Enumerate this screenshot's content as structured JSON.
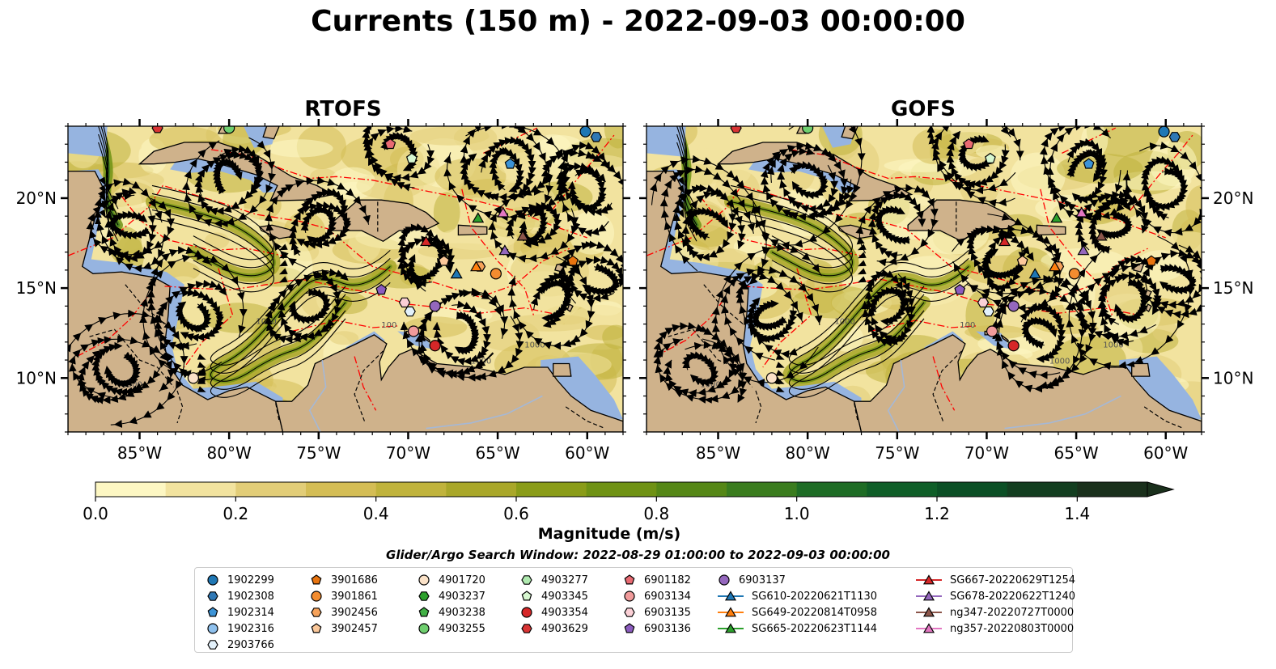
{
  "title": "Currents (150 m) - 2022-09-03 00:00:00",
  "panels": [
    {
      "title": "RTOFS"
    },
    {
      "title": "GOFS"
    }
  ],
  "map": {
    "lon_range": [
      -89,
      -58
    ],
    "lat_range": [
      7,
      24
    ],
    "lon_ticks": [
      -85,
      -80,
      -75,
      -70,
      -65,
      -60
    ],
    "lat_ticks": [
      10,
      15,
      20
    ],
    "lon_tick_labels": [
      "85°W",
      "80°W",
      "75°W",
      "70°W",
      "65°W",
      "60°W"
    ],
    "lat_tick_labels": [
      "10°N",
      "15°N",
      "20°N"
    ],
    "land_color": "#cfb28b",
    "water_color": "#96b4e0",
    "eez_color": "#ff0000",
    "contour_labels": [
      "100",
      "1000"
    ]
  },
  "colorbar": {
    "label": "Magnitude (m/s)",
    "min": 0.0,
    "max": 1.5,
    "step": 0.1,
    "tick_values": [
      0.0,
      0.2,
      0.4,
      0.6,
      0.8,
      1.0,
      1.2,
      1.4
    ],
    "tick_labels": [
      "0.0",
      "0.2",
      "0.4",
      "0.6",
      "0.8",
      "1.0",
      "1.2",
      "1.4"
    ],
    "colors": [
      "#fdf7c3",
      "#f2e39f",
      "#e2cd78",
      "#d4bd55",
      "#c0b33c",
      "#a9a729",
      "#8a9c18",
      "#6f9214",
      "#558716",
      "#3a7c1e",
      "#1e6c25",
      "#0f5e28",
      "#0b4f25",
      "#133e20",
      "#1a301c"
    ],
    "extend": "max"
  },
  "search_window": "Glider/Argo Search Window: 2022-08-29 01:00:00 to 2022-09-03 00:00:00",
  "legend": [
    {
      "label": "1902299",
      "marker": "circle",
      "color": "#1f77b4"
    },
    {
      "label": "1902308",
      "marker": "hexagon",
      "color": "#2f78b5"
    },
    {
      "label": "1902314",
      "marker": "pentagon",
      "color": "#3c93d6"
    },
    {
      "label": "1902316",
      "marker": "circle",
      "color": "#8fc1ee"
    },
    {
      "label": "2903766",
      "marker": "hexagon",
      "color": "#e3f1fb"
    },
    {
      "label": "3901686",
      "marker": "pentagon",
      "color": "#e8740f"
    },
    {
      "label": "3901861",
      "marker": "circle",
      "color": "#f38c2f"
    },
    {
      "label": "3902456",
      "marker": "hexagon",
      "color": "#f6a25a"
    },
    {
      "label": "3902457",
      "marker": "pentagon",
      "color": "#fbc89a"
    },
    {
      "label": "4901720",
      "marker": "circle",
      "color": "#fbe2c8"
    },
    {
      "label": "4903237",
      "marker": "hexagon",
      "color": "#2ca02c"
    },
    {
      "label": "4903238",
      "marker": "pentagon",
      "color": "#41b045"
    },
    {
      "label": "4903255",
      "marker": "circle",
      "color": "#6fcf6f"
    },
    {
      "label": "4903277",
      "marker": "hexagon",
      "color": "#b0eab0"
    },
    {
      "label": "4903345",
      "marker": "pentagon",
      "color": "#d7f7d0"
    },
    {
      "label": "4903354",
      "marker": "circle",
      "color": "#d62728"
    },
    {
      "label": "4903629",
      "marker": "hexagon",
      "color": "#d93434"
    },
    {
      "label": "6901182",
      "marker": "pentagon",
      "color": "#e86a72"
    },
    {
      "label": "6903134",
      "marker": "circle",
      "color": "#f19b9b"
    },
    {
      "label": "6903135",
      "marker": "hexagon",
      "color": "#fbd0d6"
    },
    {
      "label": "6903136",
      "marker": "pentagon",
      "color": "#8c5cbf"
    },
    {
      "label": "6903137",
      "marker": "circle",
      "color": "#9467bd"
    },
    {
      "label": "SG610-20220621T1130",
      "marker": "triangle",
      "color": "#1f77b4"
    },
    {
      "label": "SG649-20220814T0958",
      "marker": "triangle",
      "color": "#ff7f0e"
    },
    {
      "label": "SG665-20220623T1144",
      "marker": "triangle",
      "color": "#2ca02c"
    },
    {
      "label": "SG667-20220629T1254",
      "marker": "triangle",
      "color": "#d62728"
    },
    {
      "label": "SG678-20220622T1240",
      "marker": "triangle",
      "color": "#9467bd"
    },
    {
      "label": "ng347-20220727T0000",
      "marker": "triangle",
      "color": "#8c564b"
    },
    {
      "label": "ng357-20220803T0000",
      "marker": "triangle",
      "color": "#e377c2"
    }
  ],
  "platforms": [
    {
      "label": "1902299",
      "lon": -60.1,
      "lat": 23.7
    },
    {
      "label": "1902308",
      "lon": -59.5,
      "lat": 23.4
    },
    {
      "label": "1902314",
      "lon": -64.3,
      "lat": 21.9
    },
    {
      "label": "3901686",
      "lon": -60.8,
      "lat": 16.5
    },
    {
      "label": "3901861",
      "lon": -65.1,
      "lat": 15.8
    },
    {
      "label": "3902456",
      "lon": -66.0,
      "lat": 16.2
    },
    {
      "label": "3902457",
      "lon": -68.0,
      "lat": 16.5
    },
    {
      "label": "4901720",
      "lon": -82.0,
      "lat": 10.0
    },
    {
      "label": "4903255",
      "lon": -80.0,
      "lat": 23.9
    },
    {
      "label": "4903345",
      "lon": -69.8,
      "lat": 22.2
    },
    {
      "label": "6901182",
      "lon": -71.0,
      "lat": 23.0
    },
    {
      "label": "6903134",
      "lon": -69.7,
      "lat": 12.6
    },
    {
      "label": "6903135",
      "lon": -70.2,
      "lat": 14.2
    },
    {
      "label": "2903766",
      "lon": -69.9,
      "lat": 13.7
    },
    {
      "label": "6903136",
      "lon": -71.5,
      "lat": 14.9
    },
    {
      "label": "6903137",
      "lon": -68.5,
      "lat": 14.0
    },
    {
      "label": "4903354",
      "lon": -68.5,
      "lat": 11.8
    },
    {
      "label": "4903629",
      "lon": -84.0,
      "lat": 23.9
    },
    {
      "label": "SG610-20220621T1130",
      "lon": -67.3,
      "lat": 15.8
    },
    {
      "label": "SG649-20220814T0958",
      "lon": -66.2,
      "lat": 16.2
    },
    {
      "label": "SG665-20220623T1144",
      "lon": -66.1,
      "lat": 18.9
    },
    {
      "label": "SG667-20220629T1254",
      "lon": -69.0,
      "lat": 17.6
    },
    {
      "label": "SG678-20220622T1240",
      "lon": -64.6,
      "lat": 17.1
    },
    {
      "label": "ng347-20220727T0000",
      "lon": -63.6,
      "lat": 17.9
    },
    {
      "label": "ng357-20220803T0000",
      "lon": -64.7,
      "lat": 19.2
    }
  ]
}
